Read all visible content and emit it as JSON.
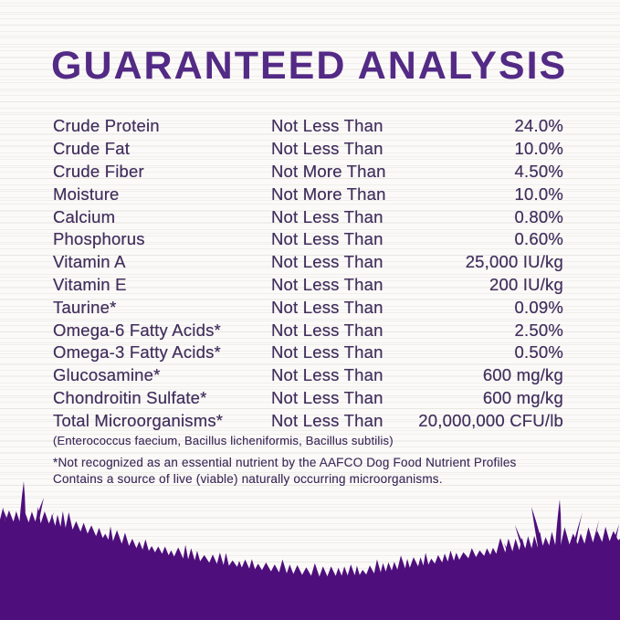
{
  "title": "GUARANTEED ANALYSIS",
  "colors": {
    "heading_purple": "#532a85",
    "text_purple": "#43305e",
    "grass_purple": "#4e0f7d",
    "background": "#fbfaf8"
  },
  "analysis_table": {
    "rows": [
      {
        "nutrient": "Crude Protein",
        "condition": "Not Less Than",
        "value": "24.0%"
      },
      {
        "nutrient": "Crude Fat",
        "condition": "Not Less Than",
        "value": "10.0%"
      },
      {
        "nutrient": "Crude Fiber",
        "condition": "Not More Than",
        "value": "4.50%"
      },
      {
        "nutrient": "Moisture",
        "condition": "Not More Than",
        "value": "10.0%"
      },
      {
        "nutrient": "Calcium",
        "condition": "Not Less Than",
        "value": "0.80%"
      },
      {
        "nutrient": "Phosphorus",
        "condition": "Not Less Than",
        "value": "0.60%"
      },
      {
        "nutrient": "Vitamin A",
        "condition": "Not Less Than",
        "value": "25,000 IU/kg"
      },
      {
        "nutrient": "Vitamin E",
        "condition": "Not Less Than",
        "value": "200 IU/kg"
      },
      {
        "nutrient": "Taurine*",
        "condition": "Not Less Than",
        "value": "0.09%"
      },
      {
        "nutrient": "Omega-6 Fatty Acids*",
        "condition": "Not Less Than",
        "value": "2.50%"
      },
      {
        "nutrient": "Omega-3 Fatty Acids*",
        "condition": "Not Less Than",
        "value": "0.50%"
      },
      {
        "nutrient": "Glucosamine*",
        "condition": "Not Less Than",
        "value": "600 mg/kg"
      },
      {
        "nutrient": "Chondroitin Sulfate*",
        "condition": "Not Less Than",
        "value": "600 mg/kg"
      },
      {
        "nutrient": "Total Microorganisms*",
        "condition": "Not Less Than",
        "value": "20,000,000 CFU/lb"
      }
    ]
  },
  "species_note": "(Enterococcus faecium, Bacillus licheniformis, Bacillus subtilis)",
  "footnotes": {
    "line1": "*Not recognized as an essential nutrient by the AAFCO Dog Food Nutrient Profiles",
    "line2": "Contains a source of live (viable) naturally occurring microorganisms."
  }
}
